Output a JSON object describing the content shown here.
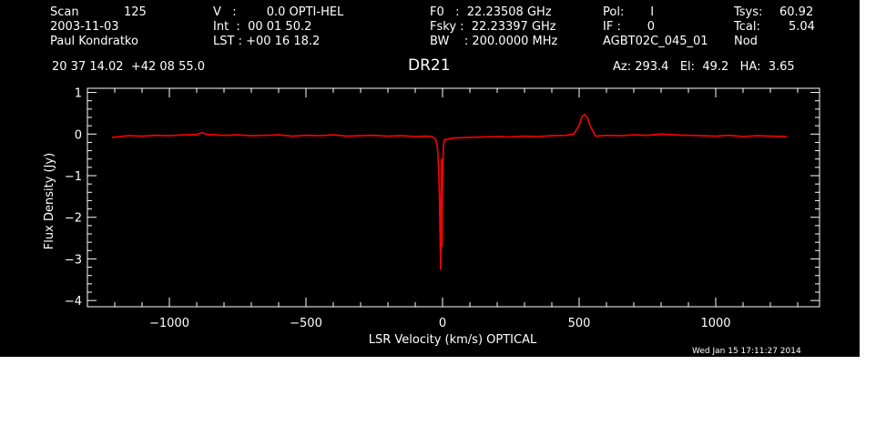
{
  "header": {
    "scan_label": "Scan",
    "scan_value": "125",
    "date": "2003-11-03",
    "observer": "Paul Kondratko",
    "v_line": "V   :        0.0 OPTI-HEL",
    "int_line": "Int  :  00 01 50.2",
    "lst_line": "LST : +00 16 18.2",
    "f0_line": "F0   :  22.23508 GHz",
    "fsky_line": "Fsky :  22.23397 GHz",
    "bw_line": "BW    : 200.0000 MHz",
    "pol_line": "Pol:       I",
    "if_line": "IF :       0",
    "project": "AGBT02C_045_01",
    "tsys_label": "Tsys:",
    "tsys_value": "60.92",
    "tcal_label": "Tcal:",
    "tcal_value": "5.04",
    "mode": "Nod",
    "coords": "20 37 14.02  +42 08 55.0",
    "source": "DR21",
    "az_el_ha": "Az: 293.4   El:  49.2   HA:  3.65"
  },
  "timestamp": "Wed Jan 15 17:11:27 2014",
  "colors": {
    "background": "#000000",
    "axes": "#ffffff",
    "spectrum": "#ff0000"
  },
  "chart_data": {
    "type": "line",
    "title": "DR21",
    "xlabel": "LSR Velocity (km/s) OPTICAL",
    "ylabel": "Flux Density (Jy)",
    "xlim": [
      -1300,
      1380
    ],
    "ylim": [
      -4.15,
      1.1
    ],
    "xticks": [
      -1000,
      -500,
      0,
      500,
      1000
    ],
    "xtick_labels": [
      "−1000",
      "−500",
      "0",
      "500",
      "1000"
    ],
    "yticks": [
      1,
      0,
      -1,
      -2,
      -3,
      -4
    ],
    "ytick_labels": [
      "1",
      "0",
      "−1",
      "−2",
      "−3",
      "−4"
    ],
    "grid": false,
    "series": [
      {
        "x": [
          -1210,
          -1150,
          -1100,
          -1050,
          -1000,
          -950,
          -900,
          -880,
          -860,
          -800,
          -750,
          -700,
          -650,
          -600,
          -550,
          -500,
          -450,
          -400,
          -350,
          -300,
          -250,
          -200,
          -150,
          -100,
          -60,
          -40,
          -25,
          -18,
          -14,
          -11,
          -9,
          -7,
          -6,
          -5,
          -4,
          -3,
          -2,
          -1,
          1,
          3,
          5,
          7,
          10,
          14,
          20,
          30,
          50,
          100,
          150,
          200,
          250,
          300,
          350,
          400,
          450,
          480,
          500,
          510,
          520,
          530,
          540,
          560,
          600,
          650,
          700,
          750,
          800,
          850,
          900,
          950,
          1000,
          1050,
          1100,
          1150,
          1200,
          1260
        ],
        "y": [
          -0.08,
          -0.04,
          -0.05,
          -0.03,
          -0.04,
          -0.02,
          -0.01,
          0.03,
          -0.01,
          -0.03,
          -0.02,
          -0.04,
          -0.03,
          -0.02,
          -0.05,
          -0.03,
          -0.04,
          -0.02,
          -0.05,
          -0.04,
          -0.03,
          -0.05,
          -0.04,
          -0.06,
          -0.05,
          -0.06,
          -0.12,
          -0.35,
          -0.9,
          -1.6,
          -2.5,
          -3.25,
          -2.2,
          -0.9,
          -0.6,
          -1.8,
          -2.7,
          -1.5,
          -0.8,
          -0.3,
          -0.2,
          -0.15,
          -0.12,
          -0.14,
          -0.13,
          -0.1,
          -0.09,
          -0.08,
          -0.07,
          -0.06,
          -0.07,
          -0.05,
          -0.06,
          -0.04,
          -0.03,
          0.0,
          0.2,
          0.42,
          0.47,
          0.4,
          0.2,
          -0.05,
          -0.03,
          -0.04,
          -0.02,
          -0.03,
          0.0,
          -0.02,
          -0.03,
          -0.04,
          -0.05,
          -0.03,
          -0.06,
          -0.04,
          -0.05,
          -0.06
        ]
      }
    ]
  }
}
